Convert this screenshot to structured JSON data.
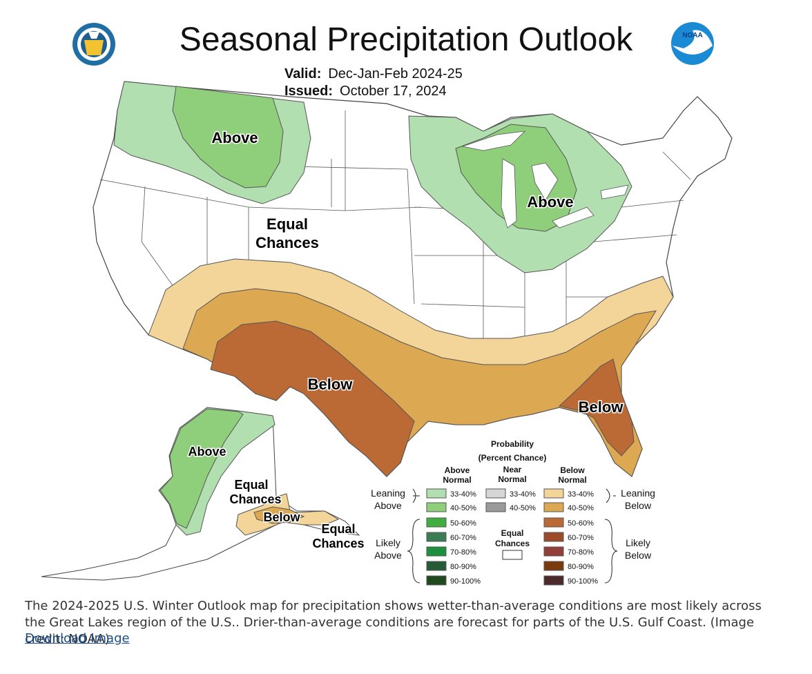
{
  "map": {
    "title": "Seasonal Precipitation Outlook",
    "valid_label": "Valid:",
    "valid_value": "Dec-Jan-Feb 2024-25",
    "issued_label": "Issued:",
    "issued_value": "October 17, 2024",
    "logos": {
      "left": "department-of-commerce-seal",
      "right": "noaa-logo",
      "noaa_text": "NOAA"
    },
    "region_labels": {
      "nw_above": "Above",
      "gl_above": "Above",
      "equal_1": "Equal",
      "equal_2": "Chances",
      "sw_below": "Below",
      "se_below": "Below",
      "ak_above": "Above",
      "ak_equal_1": "Equal",
      "ak_equal_2": "Chances",
      "ak_below": "Below",
      "ak_equal_b1": "Equal",
      "ak_equal_b2": "Chances"
    },
    "colors": {
      "above_33_40": "#b2dfb0",
      "above_40_50": "#8fcf7c",
      "below_33_40": "#f3d59a",
      "below_40_50": "#dca852",
      "below_50_60": "#bb6a35",
      "outline": "#444444",
      "link": "#1d4e89"
    }
  },
  "legend": {
    "title_1": "Probability",
    "title_2": "(Percent Chance)",
    "above_head_1": "Above",
    "above_head_2": "Normal",
    "near_head_1": "Near",
    "near_head_2": "Normal",
    "below_head_1": "Below",
    "below_head_2": "Normal",
    "leaning_above_1": "Leaning",
    "leaning_above_2": "Above",
    "likely_above_1": "Likely",
    "likely_above_2": "Above",
    "leaning_below_1": "Leaning",
    "leaning_below_2": "Below",
    "likely_below_1": "Likely",
    "likely_below_2": "Below",
    "equal_1": "Equal",
    "equal_2": "Chances",
    "above": [
      {
        "range": "33-40%",
        "color": "#b2dfb0"
      },
      {
        "range": "40-50%",
        "color": "#8fcf7c"
      },
      {
        "range": "50-60%",
        "color": "#3fae3f"
      },
      {
        "range": "60-70%",
        "color": "#3a7d55"
      },
      {
        "range": "70-80%",
        "color": "#1e8f3e"
      },
      {
        "range": "80-90%",
        "color": "#255a37"
      },
      {
        "range": "90-100%",
        "color": "#1f4a1f"
      }
    ],
    "near": [
      {
        "range": "33-40%",
        "color": "#d6d6d6"
      },
      {
        "range": "40-50%",
        "color": "#9a9a9a"
      }
    ],
    "below": [
      {
        "range": "33-40%",
        "color": "#f3d59a"
      },
      {
        "range": "40-50%",
        "color": "#dca852"
      },
      {
        "range": "50-60%",
        "color": "#bb6a35"
      },
      {
        "range": "60-70%",
        "color": "#9c4a2c"
      },
      {
        "range": "70-80%",
        "color": "#913f38"
      },
      {
        "range": "80-90%",
        "color": "#7a3a0e"
      },
      {
        "range": "90-100%",
        "color": "#4a2a2a"
      }
    ]
  },
  "caption": {
    "text": "The 2024-2025 U.S. Winter Outlook map for precipitation shows wetter-than-average conditions are most likely across the Great Lakes region of the U.S.. Drier-than-average conditions are forecast for parts of the U.S. Gulf Coast. (Image credit: NOAA)",
    "link": "Download Image"
  }
}
